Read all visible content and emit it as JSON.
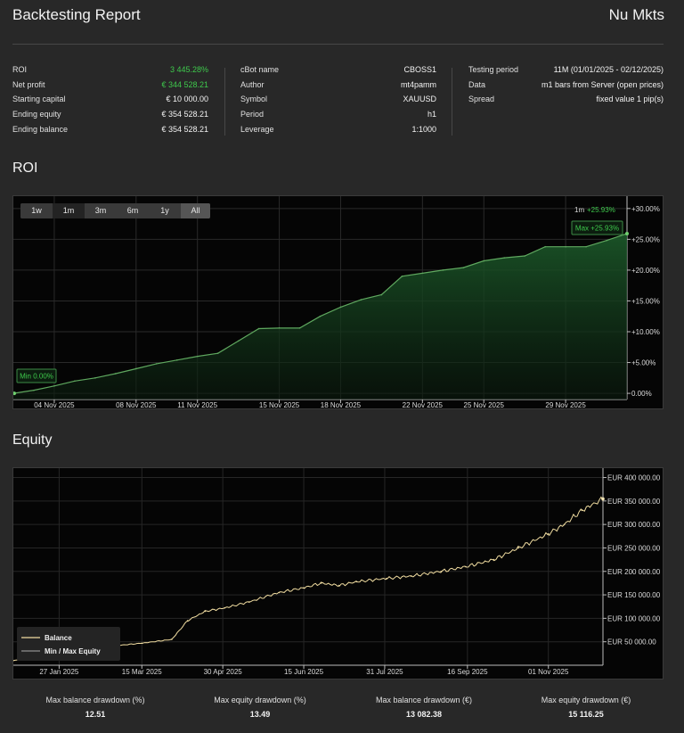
{
  "header": {
    "title": "Backtesting Report",
    "brand": "Nu Mkts"
  },
  "summary": {
    "col1": [
      {
        "label": "ROI",
        "value": "3 445.28%",
        "color": "#3ec94c"
      },
      {
        "label": "Net profit",
        "value": "€ 344 528.21",
        "color": "#3ec94c"
      },
      {
        "label": "Starting capital",
        "value": "€ 10 000.00"
      },
      {
        "label": "Ending equity",
        "value": "€ 354 528.21"
      },
      {
        "label": "Ending balance",
        "value": "€ 354 528.21"
      }
    ],
    "col2": [
      {
        "label": "cBot name",
        "value": "CBOSS1"
      },
      {
        "label": "Author",
        "value": "mt4pamm"
      },
      {
        "label": "Symbol",
        "value": "XAUUSD"
      },
      {
        "label": "Period",
        "value": "h1"
      },
      {
        "label": "Leverage",
        "value": "1:1000"
      }
    ],
    "col3": [
      {
        "label": "Testing period",
        "value": "11M (01/01/2025 - 02/12/2025)"
      },
      {
        "label": "Data",
        "value": "m1 bars from Server (open prices)"
      },
      {
        "label": "Spread",
        "value": "fixed value 1 pip(s)"
      }
    ]
  },
  "roi_section": {
    "title": "ROI",
    "ranges": [
      "1w",
      "1m",
      "3m",
      "6m",
      "1y",
      "All"
    ],
    "active_range": "1m",
    "period_badge": {
      "period": "1m",
      "value": "+25.93%"
    },
    "max_label": "Max +25.93%",
    "min_label": "Min 0.00%"
  },
  "equity_section": {
    "title": "Equity",
    "legend": {
      "balance": "Balance",
      "minmax": "Min / Max Equity"
    }
  },
  "footer": [
    {
      "label": "Max balance drawdown (%)",
      "value": "12.51"
    },
    {
      "label": "Max equity drawdown (%)",
      "value": "13.49"
    },
    {
      "label": "Max balance drawdown (€)",
      "value": "13 082.38"
    },
    {
      "label": "Max equity drawdown (€)",
      "value": "15 116.25"
    }
  ],
  "colors": {
    "green": "#3ec94c",
    "balance_line": "#f0dca0",
    "roi_line": "#5fa85f"
  },
  "chart_data": [
    {
      "type": "area",
      "title": "ROI",
      "x_ticks": [
        "04 Nov 2025",
        "08 Nov 2025",
        "11 Nov 2025",
        "15 Nov 2025",
        "18 Nov 2025",
        "22 Nov 2025",
        "25 Nov 2025",
        "29 Nov 2025"
      ],
      "y_ticks": [
        "+30.00%",
        "+25.00%",
        "+20.00%",
        "+15.00%",
        "+10.00%",
        "+5.00%",
        "0.00%"
      ],
      "ylim": [
        -1,
        32
      ],
      "xlim": [
        "2025-11-02",
        "2025-12-02"
      ],
      "series": [
        {
          "x": [
            "2025-11-02",
            "2025-11-03",
            "2025-11-04",
            "2025-11-05",
            "2025-11-06",
            "2025-11-07",
            "2025-11-08",
            "2025-11-09",
            "2025-11-10",
            "2025-11-11",
            "2025-11-12",
            "2025-11-13",
            "2025-11-14",
            "2025-11-15",
            "2025-11-16",
            "2025-11-17",
            "2025-11-18",
            "2025-11-19",
            "2025-11-20",
            "2025-11-21",
            "2025-11-22",
            "2025-11-23",
            "2025-11-24",
            "2025-11-25",
            "2025-11-26",
            "2025-11-27",
            "2025-11-28",
            "2025-11-29",
            "2025-11-30",
            "2025-12-01",
            "2025-12-02"
          ],
          "values": [
            0.0,
            0.5,
            1.2,
            2.0,
            2.5,
            3.2,
            4.0,
            4.8,
            5.4,
            6.0,
            6.5,
            8.5,
            10.5,
            10.6,
            10.6,
            12.5,
            14.0,
            15.2,
            16.0,
            19.0,
            19.5,
            20.0,
            20.4,
            21.5,
            22.0,
            22.3,
            23.8,
            23.8,
            23.8,
            24.8,
            25.93
          ]
        }
      ]
    },
    {
      "type": "line",
      "title": "Equity",
      "x_ticks": [
        "27 Jan 2025",
        "15 Mar 2025",
        "30 Apr 2025",
        "15 Jun 2025",
        "31 Jul 2025",
        "16 Sep 2025",
        "01 Nov 2025"
      ],
      "y_ticks": [
        "EUR 400 000.00",
        "EUR 350 000.00",
        "EUR 300 000.00",
        "EUR 250 000.00",
        "EUR 200 000.00",
        "EUR 150 000.00",
        "EUR 100 000.00",
        "EUR 50 000.00"
      ],
      "ylim": [
        0,
        420000
      ],
      "xlim": [
        "2025-01-01",
        "2025-12-02"
      ],
      "series": [
        {
          "name": "Balance",
          "x": [
            "2025-01-01",
            "2025-01-15",
            "2025-02-01",
            "2025-02-15",
            "2025-03-01",
            "2025-03-15",
            "2025-04-01",
            "2025-04-10",
            "2025-04-20",
            "2025-05-01",
            "2025-05-15",
            "2025-06-01",
            "2025-06-15",
            "2025-06-25",
            "2025-07-05",
            "2025-07-15",
            "2025-08-01",
            "2025-08-15",
            "2025-09-01",
            "2025-09-15",
            "2025-10-01",
            "2025-10-15",
            "2025-11-01",
            "2025-11-10",
            "2025-11-20",
            "2025-12-02"
          ],
          "values": [
            10000,
            18000,
            28000,
            35000,
            42000,
            47000,
            55000,
            95000,
            115000,
            122000,
            135000,
            155000,
            165000,
            175000,
            170000,
            178000,
            185000,
            190000,
            200000,
            210000,
            225000,
            250000,
            280000,
            300000,
            330000,
            354528
          ]
        }
      ]
    }
  ]
}
